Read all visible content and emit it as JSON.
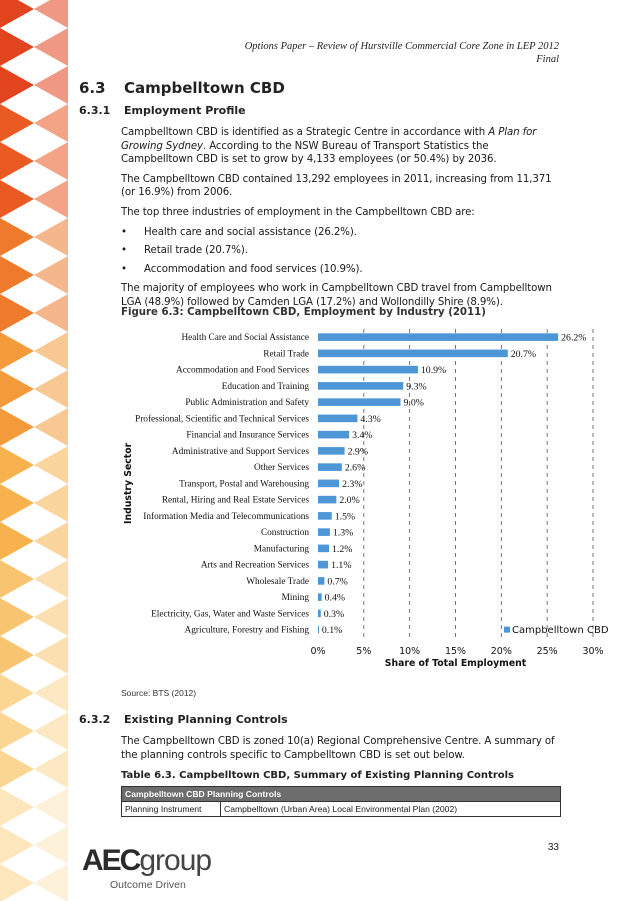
{
  "header": {
    "line1": "Options Paper – Review of Hurstville Commercial Core Zone in LEP 2012",
    "line2": "Final"
  },
  "section": {
    "number": "6.3",
    "title": "Campbelltown CBD"
  },
  "subsection1": {
    "number": "6.3.1",
    "title": "Employment Profile"
  },
  "para1": {
    "a": "Campbelltown CBD is identified as a Strategic Centre in accordance with ",
    "italic": "A Plan for Growing Sydney",
    "b": ". According to the NSW Bureau of Transport Statistics the Campbelltown CBD is set to grow by 4,133 employees (or 50.4%) by 2036."
  },
  "para2": "The Campbelltown CBD contained 13,292 employees in 2011, increasing from 11,371 (or 16.9%) from 2006.",
  "para3": "The top three industries of employment in the Campbelltown CBD are:",
  "bullets": [
    "Health care and social assistance (26.2%).",
    "Retail trade (20.7%).",
    "Accommodation and food services (10.9%)."
  ],
  "para4": "The majority of employees who work in Campbelltown CBD travel from Campbelltown LGA (48.9%) followed by Camden LGA (17.2%) and Wollondilly Shire (8.9%).",
  "figure_title": "Figure 6.3: Campbelltown CBD, Employment by Industry (2011)",
  "chart_data": {
    "type": "bar",
    "orientation": "horizontal",
    "categories": [
      "Health Care and Social Assistance",
      "Retail Trade",
      "Accommodation and Food Services",
      "Education and Training",
      "Public Administration and Safety",
      "Professional, Scientific and Technical Services",
      "Financial and Insurance Services",
      "Administrative and Support Services",
      "Other Services",
      "Transport, Postal and Warehousing",
      "Rental, Hiring and Real Estate Services",
      "Information Media and Telecommunications",
      "Construction",
      "Manufacturing",
      "Arts and Recreation Services",
      "Wholesale Trade",
      "Mining",
      "Electricity, Gas, Water and Waste Services",
      "Agriculture, Forestry and Fishing"
    ],
    "values": [
      26.2,
      20.7,
      10.9,
      9.3,
      9.0,
      4.3,
      3.4,
      2.9,
      2.6,
      2.3,
      2.0,
      1.5,
      1.3,
      1.2,
      1.1,
      0.7,
      0.4,
      0.3,
      0.1
    ],
    "value_labels": [
      "26.2%",
      "20.7%",
      "10.9%",
      "9.3%",
      "9.0%",
      "4.3%",
      "3.4%",
      "2.9%",
      "2.6%",
      "2.3%",
      "2.0%",
      "1.5%",
      "1.3%",
      "1.2%",
      "1.1%",
      "0.7%",
      "0.4%",
      "0.3%",
      "0.1%"
    ],
    "series": [
      {
        "name": "Campbelltown CBD",
        "color": "#4f96d6"
      }
    ],
    "xlabel": "Share of Total Employment",
    "ylabel": "Industry Sector",
    "xlim": [
      0,
      30
    ],
    "xticks": [
      0,
      5,
      10,
      15,
      20,
      25,
      30
    ],
    "xtick_labels": [
      "0%",
      "5%",
      "10%",
      "15%",
      "20%",
      "25%",
      "30%"
    ],
    "grid": "vertical dashed",
    "legend": "bottom-right"
  },
  "source": "Source: BTS (2012)",
  "subsection2": {
    "number": "6.3.2",
    "title": "Existing Planning Controls"
  },
  "para5": "The Campbelltown CBD is zoned 10(a) Regional Comprehensive Centre. A summary of the planning controls specific to Campbelltown CBD is set out below.",
  "table_title": "Table 6.3. Campbelltown CBD, Summary of Existing Planning Controls",
  "table": {
    "header": "Campbelltown CBD Planning Controls",
    "rows": [
      [
        "Planning Instrument",
        "Campbelltown (Urban Area) Local Environmental Plan (2002)"
      ]
    ]
  },
  "page_number": "33",
  "logo": {
    "aec": "AEC",
    "group": "group",
    "tagline": "Outcome Driven"
  },
  "colors": {
    "bar": "#4f96d6",
    "table_header": "#6d6d6d",
    "deco_orange": "#e8742a",
    "deco_yellow": "#f6b64a"
  }
}
